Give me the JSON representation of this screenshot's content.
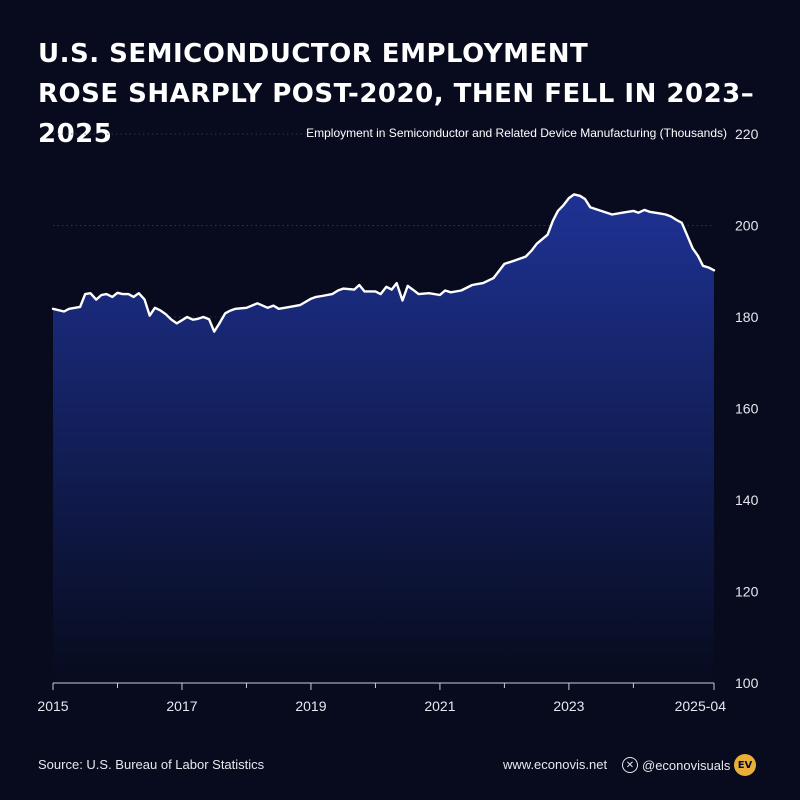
{
  "title": {
    "line1": "U.S. SEMICONDUCTOR EMPLOYMENT",
    "line2": "ROSE SHARPLY POST-2020, THEN FELL IN 2023–2025"
  },
  "footer": {
    "source": "Source: U.S. Bureau of Labor Statistics",
    "website": "www.econovis.net",
    "social_handle": "@econovisuals",
    "social_icon": "x-icon",
    "logo_text": "EV"
  },
  "colors": {
    "background": "#070b1d",
    "line": "#ffffff",
    "area_top": "#1e3294",
    "area_bottom": "#070b1d",
    "grid": "#3a4060",
    "logo": "#e8b03a"
  },
  "chart_data": {
    "type": "area",
    "series_label": "Employment in Semiconductor and Related Device Manufacturing (Thousands)",
    "x_unit": "year",
    "xlim": [
      2015.0,
      2025.25
    ],
    "ylim": [
      100,
      220
    ],
    "yticks": [
      100,
      120,
      140,
      160,
      180,
      200,
      220
    ],
    "xticks": [
      {
        "value": 2015,
        "label": "2015"
      },
      {
        "value": 2017,
        "label": "2017"
      },
      {
        "value": 2019,
        "label": "2019"
      },
      {
        "value": 2021,
        "label": "2021"
      },
      {
        "value": 2023,
        "label": "2023"
      },
      {
        "value": 2025.25,
        "label": "2025-04"
      }
    ],
    "minor_xticks": [
      2016,
      2018,
      2020,
      2022,
      2024
    ],
    "grid": true,
    "x": [
      2015.0,
      2015.17,
      2015.25,
      2015.42,
      2015.5,
      2015.58,
      2015.67,
      2015.75,
      2015.83,
      2015.92,
      2016.0,
      2016.08,
      2016.17,
      2016.25,
      2016.33,
      2016.42,
      2016.5,
      2016.58,
      2016.67,
      2016.75,
      2016.83,
      2016.92,
      2017.0,
      2017.08,
      2017.17,
      2017.25,
      2017.33,
      2017.42,
      2017.5,
      2017.58,
      2017.67,
      2017.75,
      2017.83,
      2018.0,
      2018.17,
      2018.33,
      2018.42,
      2018.5,
      2018.67,
      2018.83,
      2019.0,
      2019.08,
      2019.17,
      2019.33,
      2019.42,
      2019.5,
      2019.67,
      2019.75,
      2019.83,
      2020.0,
      2020.08,
      2020.17,
      2020.25,
      2020.33,
      2020.42,
      2020.5,
      2020.58,
      2020.67,
      2020.83,
      2021.0,
      2021.08,
      2021.17,
      2021.33,
      2021.5,
      2021.58,
      2021.67,
      2021.83,
      2022.0,
      2022.17,
      2022.33,
      2022.42,
      2022.5,
      2022.67,
      2022.75,
      2022.83,
      2022.92,
      2023.0,
      2023.08,
      2023.17,
      2023.25,
      2023.33,
      2023.5,
      2023.67,
      2023.83,
      2024.0,
      2024.08,
      2024.17,
      2024.25,
      2024.42,
      2024.5,
      2024.58,
      2024.67,
      2024.75,
      2024.83,
      2024.92,
      2025.0,
      2025.08,
      2025.17,
      2025.25
    ],
    "values": [
      181.8,
      181.2,
      181.8,
      182.2,
      185.0,
      185.2,
      183.8,
      184.8,
      185.0,
      184.4,
      185.3,
      185.0,
      185.0,
      184.4,
      185.2,
      183.8,
      180.3,
      182.0,
      181.4,
      180.6,
      179.5,
      178.6,
      179.3,
      180.0,
      179.4,
      179.6,
      180.0,
      179.5,
      176.8,
      178.6,
      180.8,
      181.4,
      181.8,
      182.0,
      183.0,
      182.0,
      182.5,
      181.8,
      182.2,
      182.6,
      184.0,
      184.4,
      184.6,
      185.0,
      185.8,
      186.2,
      186.0,
      187.0,
      185.6,
      185.6,
      185.0,
      186.6,
      186.0,
      187.4,
      183.6,
      186.8,
      186.0,
      185.0,
      185.2,
      184.8,
      185.8,
      185.4,
      185.8,
      187.0,
      187.2,
      187.4,
      188.5,
      191.6,
      192.4,
      193.2,
      194.5,
      196.0,
      198.0,
      201.0,
      203.2,
      204.5,
      206.0,
      206.8,
      206.5,
      205.8,
      204.0,
      203.2,
      202.4,
      202.8,
      203.2,
      202.8,
      203.4,
      203.0,
      202.6,
      202.4,
      202.0,
      201.2,
      200.6,
      198.0,
      195.0,
      193.4,
      191.2,
      190.8,
      190.2
    ]
  }
}
